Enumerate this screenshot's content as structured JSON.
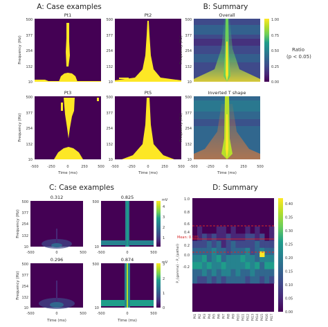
{
  "colors": {
    "viridis": [
      "#440154",
      "#482777",
      "#3f4a8a",
      "#31678e",
      "#26838f",
      "#1f9d8a",
      "#6cce5a",
      "#b6de2b",
      "#fee825"
    ],
    "dark": "#440154",
    "yellow": "#fde725",
    "red": "#d62728"
  },
  "panels": {
    "A": {
      "title": "A: Case examples"
    },
    "B": {
      "title": "B: Summary"
    },
    "C": {
      "title": "C: Case examples"
    },
    "D": {
      "title": "D: Summary"
    }
  },
  "chart_data": [
    {
      "id": "A",
      "type": "heatmap",
      "title": "A: Case examples",
      "subplots": [
        "Pt1",
        "Pt2",
        "Pt3",
        "Pt5"
      ],
      "x_ticks": [
        "-500",
        "-250",
        "0",
        "250",
        "500"
      ],
      "y_ticks": [
        "500",
        "377",
        "254",
        "132",
        "10"
      ],
      "xlabel": "Time (ms)",
      "ylabel": "Frequency (Hz)"
    },
    {
      "id": "B",
      "type": "heatmap",
      "title": "B: Summary",
      "subplots": [
        "Overall",
        "Inverted T shape"
      ],
      "x_ticks": [
        "-500",
        "-250",
        "0",
        "250",
        "500"
      ],
      "y_ticks": [
        "500",
        "377",
        "254",
        "132",
        "10"
      ],
      "xlabel": "Time (ms)",
      "ylabel": "Frequency (Hz)",
      "colorbar": {
        "ticks": [
          "1.00",
          "0.75",
          "0.50",
          "0.25",
          "0.00"
        ],
        "range": [
          0,
          1
        ],
        "label": "Ratio",
        "label2": "(p < 0.05)"
      }
    },
    {
      "id": "C",
      "type": "heatmap",
      "title": "C: Case examples",
      "subplots": [
        "0.312",
        "0.825",
        "0.296",
        "0.874"
      ],
      "x_ticks": [
        "-500",
        "-250",
        "0",
        "250",
        "500"
      ],
      "y_ticks": [
        "500",
        "377",
        "254",
        "132",
        "10"
      ],
      "xlabel": "Time (ms)",
      "ylabel": "Frequency (Hz)",
      "colorbars": [
        {
          "label": "mV",
          "ticks": [
            "4",
            "3",
            "2",
            "1"
          ],
          "range": [
            0,
            4.5
          ]
        },
        {
          "label": "mV",
          "ticks": [
            "3",
            "2",
            "1",
            "0"
          ],
          "range": [
            0,
            3
          ]
        }
      ]
    },
    {
      "id": "D",
      "type": "heatmap",
      "title": "D: Summary",
      "categories": [
        "Pt1",
        "Pt2",
        "Pt3",
        "Pt4",
        "Pt5",
        "Pt6",
        "Pt7",
        "Pt8",
        "Pt9",
        "Pt10",
        "Pt11",
        "Pt12",
        "Pt13",
        "Pt14",
        "Pt15",
        "Pt16",
        "Pt17"
      ],
      "y_ticks": [
        "1.0",
        "0.8",
        "0.6",
        "0.4",
        "0.2",
        "0.0",
        "-0.2"
      ],
      "ylim": [
        -0.2,
        1.0
      ],
      "ylabel": "P_{gamma} - P_{pathol}",
      "colorbar": {
        "ticks": [
          "0.40",
          "0.35",
          "0.30",
          "0.25",
          "0.20",
          "0.15",
          "0.10",
          "0.05",
          "0.00"
        ],
        "range": [
          0,
          0.42
        ]
      },
      "mean_label": "Mean: 0.285",
      "lines": {
        "mean": 0.285,
        "upper": 0.5,
        "lower": 0.08
      }
    }
  ]
}
